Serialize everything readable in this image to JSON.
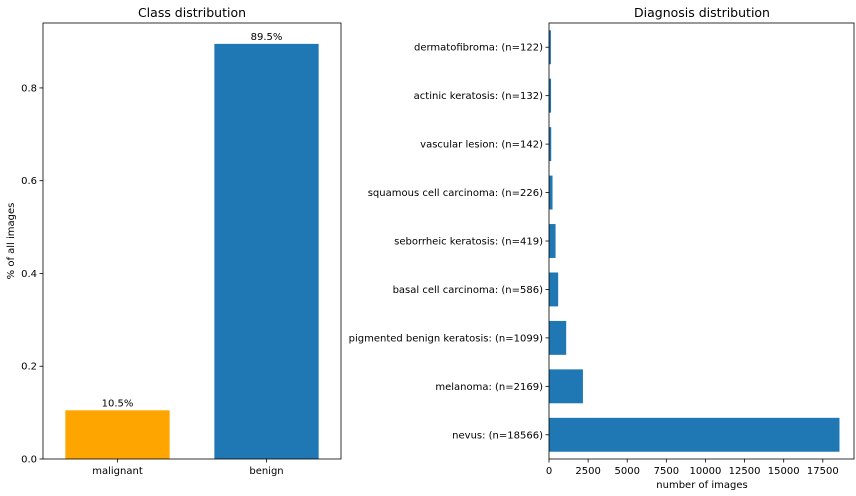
{
  "chart_data": [
    {
      "type": "bar",
      "title": "Class distribution",
      "xlabel": "",
      "ylabel": "% of all images",
      "categories": [
        "malignant",
        "benign"
      ],
      "values": [
        0.105,
        0.895
      ],
      "data_labels": [
        "10.5%",
        "89.5%"
      ],
      "colors": [
        "#ffa500",
        "#1f77b4"
      ],
      "ylim": [
        0,
        0.94
      ],
      "yticks": [
        0.0,
        0.2,
        0.4,
        0.6,
        0.8
      ],
      "ytick_labels": [
        "0.0",
        "0.2",
        "0.4",
        "0.6",
        "0.8"
      ],
      "grid": false
    },
    {
      "type": "bar",
      "orientation": "horizontal",
      "title": "Diagnosis distribution",
      "xlabel": "number of images",
      "ylabel": "",
      "categories": [
        "nevus: (n=18566)",
        "melanoma: (n=2169)",
        "pigmented benign keratosis: (n=1099)",
        "basal cell carcinoma: (n=586)",
        "seborrheic keratosis: (n=419)",
        "squamous cell carcinoma: (n=226)",
        "vascular lesion: (n=142)",
        "actinic keratosis: (n=132)",
        "dermatofibroma: (n=122)"
      ],
      "values": [
        18566,
        2169,
        1099,
        586,
        419,
        226,
        142,
        132,
        122
      ],
      "color": "#1f77b4",
      "xlim": [
        0,
        19494
      ],
      "xticks": [
        0,
        2500,
        5000,
        7500,
        10000,
        12500,
        15000,
        17500
      ],
      "xtick_labels": [
        "0",
        "2500",
        "5000",
        "7500",
        "10000",
        "12500",
        "15000",
        "17500"
      ],
      "grid": false
    }
  ]
}
